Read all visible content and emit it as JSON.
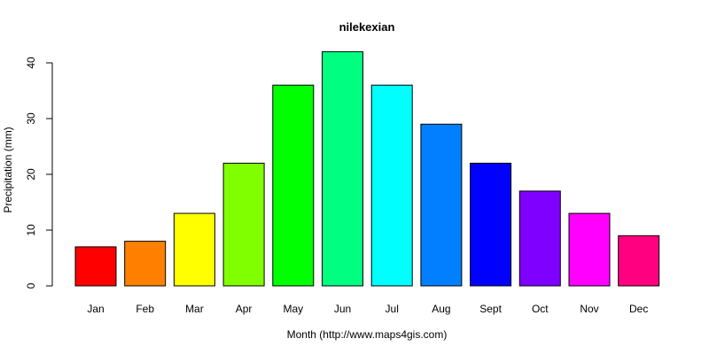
{
  "chart_data": {
    "type": "bar",
    "title": "nilekexian",
    "xlabel": "Month (http://www.maps4gis.com)",
    "ylabel": "Precipitation (mm)",
    "categories": [
      "Jan",
      "Feb",
      "Mar",
      "Apr",
      "May",
      "Jun",
      "Jul",
      "Aug",
      "Sept",
      "Oct",
      "Nov",
      "Dec"
    ],
    "values": [
      7,
      8,
      13,
      22,
      36,
      42,
      36,
      29,
      22,
      17,
      13,
      9
    ],
    "colors": [
      "#FF0000",
      "#FF8000",
      "#FFFF00",
      "#80FF00",
      "#00FF00",
      "#00FF80",
      "#00FFFF",
      "#0080FF",
      "#0000FF",
      "#8000FF",
      "#FF00FF",
      "#FF0080"
    ],
    "yticks": [
      0,
      10,
      20,
      30,
      40
    ],
    "ylim": [
      0,
      42
    ],
    "grid": false,
    "legend": "none"
  }
}
